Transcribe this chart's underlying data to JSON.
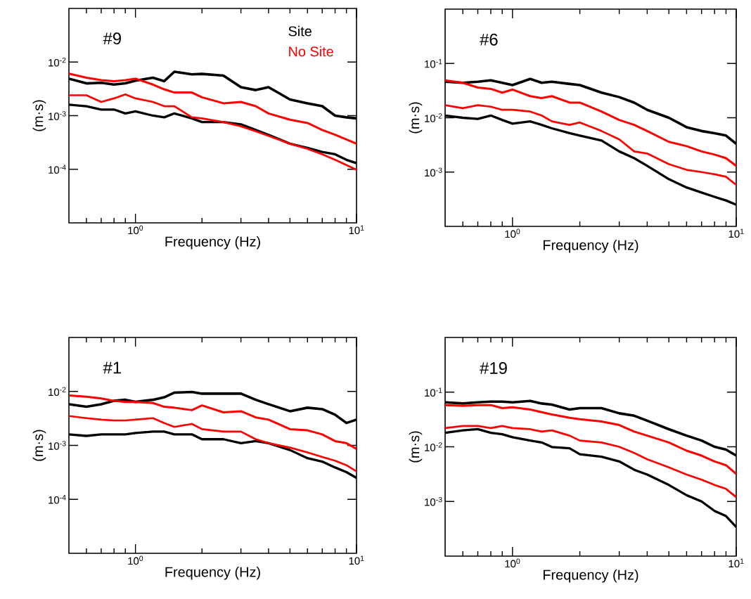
{
  "chart_data": [
    {
      "type": "line",
      "title": "#9",
      "xlabel": "Frequency (Hz)",
      "ylabel": "(m·s)",
      "log": "xy",
      "legend": "top right",
      "x": [
        0.5,
        0.6,
        0.7,
        0.8,
        0.9,
        1,
        1.2,
        1.35,
        1.5,
        1.8,
        2,
        2.5,
        3,
        3.5,
        4,
        5,
        6,
        7,
        8,
        9,
        10
      ],
      "series": [
        {
          "name": "Site",
          "color": "#000000",
          "values": [
            0.0049,
            0.004,
            0.0041,
            0.0038,
            0.004,
            0.0045,
            0.0051,
            0.0044,
            0.0066,
            0.0059,
            0.006,
            0.0056,
            0.0034,
            0.003,
            0.0034,
            0.002,
            0.0017,
            0.0015,
            0.001,
            0.00093,
            0.00089
          ]
        },
        {
          "color": "#000000",
          "values": [
            0.0016,
            0.0015,
            0.0013,
            0.0013,
            0.0011,
            0.0012,
            0.001,
            0.00093,
            0.0011,
            0.00089,
            0.00076,
            0.00076,
            0.00069,
            0.00054,
            0.00044,
            0.0003,
            0.00025,
            0.00021,
            0.00019,
            0.00015,
            0.00013
          ]
        },
        {
          "name": "No Site",
          "color": "#ff0000",
          "values": [
            0.0061,
            0.0051,
            0.0046,
            0.0044,
            0.0046,
            0.0049,
            0.0038,
            0.0031,
            0.0027,
            0.0027,
            0.0022,
            0.0017,
            0.0018,
            0.0015,
            0.0011,
            0.00084,
            0.00073,
            0.00054,
            0.00044,
            0.00036,
            0.0003
          ]
        },
        {
          "color": "#ff0000",
          "values": [
            0.0024,
            0.0024,
            0.0018,
            0.0021,
            0.0025,
            0.0021,
            0.0018,
            0.0015,
            0.0015,
            0.00093,
            0.00089,
            0.00076,
            0.00063,
            0.00051,
            0.00042,
            0.0003,
            0.00024,
            0.00019,
            0.00015,
            0.00012,
            9.8e-05
          ]
        }
      ],
      "xlim": [
        0.5,
        10
      ],
      "ylim": [
        1e-05,
        0.1
      ],
      "xticks": [
        {
          "value": 0.6,
          "label": null
        },
        {
          "value": 0.7,
          "label": null
        },
        {
          "value": 0.8,
          "label": null
        },
        {
          "value": 0.9,
          "label": null
        },
        {
          "value": 1,
          "label": "10$^{0}$"
        },
        {
          "value": 2,
          "label": null
        },
        {
          "value": 3,
          "label": null
        },
        {
          "value": 4,
          "label": null
        },
        {
          "value": 5,
          "label": null
        },
        {
          "value": 6,
          "label": null
        },
        {
          "value": 7,
          "label": null
        },
        {
          "value": 8,
          "label": null
        },
        {
          "value": 9,
          "label": null
        },
        {
          "value": 10,
          "label": "10$^{1}$"
        }
      ],
      "yticks": [
        {
          "value": 0.0001,
          "label": "10$^{-4}$"
        },
        {
          "value": 0.001,
          "label": "10$^{-3}$"
        },
        {
          "value": 0.01,
          "label": "10$^{-2}$"
        }
      ]
    },
    {
      "type": "line",
      "title": "#6",
      "xlabel": "Frequency (Hz)",
      "ylabel": "(m·s)",
      "log": "xy",
      "x": [
        0.5,
        0.6,
        0.7,
        0.8,
        0.9,
        1,
        1.2,
        1.35,
        1.5,
        1.8,
        2,
        2.5,
        3,
        3.5,
        4,
        5,
        6,
        7,
        8,
        9,
        10
      ],
      "series": [
        {
          "color": "#000000",
          "values": [
            0.046,
            0.044,
            0.046,
            0.049,
            0.044,
            0.04,
            0.052,
            0.044,
            0.046,
            0.042,
            0.04,
            0.029,
            0.024,
            0.019,
            0.014,
            0.01,
            0.0067,
            0.0057,
            0.0052,
            0.0047,
            0.0033
          ]
        },
        {
          "color": "#000000",
          "values": [
            0.011,
            0.01,
            0.0095,
            0.011,
            0.0091,
            0.0078,
            0.0086,
            0.0074,
            0.0064,
            0.0052,
            0.0047,
            0.0038,
            0.0024,
            0.0018,
            0.0013,
            0.00074,
            0.00052,
            0.00042,
            0.00035,
            0.0003,
            0.00025
          ]
        },
        {
          "color": "#ff0000",
          "values": [
            0.049,
            0.044,
            0.036,
            0.034,
            0.029,
            0.033,
            0.025,
            0.023,
            0.025,
            0.019,
            0.019,
            0.013,
            0.0091,
            0.0074,
            0.0057,
            0.0036,
            0.003,
            0.0024,
            0.0021,
            0.0018,
            0.0013
          ]
        },
        {
          "color": "#ff0000",
          "values": [
            0.017,
            0.015,
            0.017,
            0.016,
            0.014,
            0.014,
            0.013,
            0.011,
            0.0086,
            0.0074,
            0.0082,
            0.0057,
            0.004,
            0.0024,
            0.0022,
            0.0014,
            0.0011,
            0.001,
            0.00091,
            0.00082,
            0.00058
          ]
        }
      ],
      "xlim": [
        0.5,
        10
      ],
      "ylim": [
        0.0001,
        1
      ],
      "xticks": [
        {
          "value": 0.6,
          "label": null
        },
        {
          "value": 0.7,
          "label": null
        },
        {
          "value": 0.8,
          "label": null
        },
        {
          "value": 0.9,
          "label": null
        },
        {
          "value": 1,
          "label": "10$^{0}$"
        },
        {
          "value": 2,
          "label": null
        },
        {
          "value": 3,
          "label": null
        },
        {
          "value": 4,
          "label": null
        },
        {
          "value": 5,
          "label": null
        },
        {
          "value": 6,
          "label": null
        },
        {
          "value": 7,
          "label": null
        },
        {
          "value": 8,
          "label": null
        },
        {
          "value": 9,
          "label": null
        },
        {
          "value": 10,
          "label": "10$^{1}$"
        }
      ],
      "yticks": [
        {
          "value": 0.001,
          "label": "10$^{-3}$"
        },
        {
          "value": 0.01,
          "label": "10$^{-2}$"
        },
        {
          "value": 0.1,
          "label": "10$^{-1}$"
        }
      ]
    },
    {
      "type": "line",
      "title": "#1",
      "xlabel": "Frequency (Hz)",
      "ylabel": "(m·s)",
      "log": "xy",
      "x": [
        0.5,
        0.6,
        0.7,
        0.8,
        0.9,
        1,
        1.2,
        1.35,
        1.5,
        1.8,
        2,
        2.5,
        3,
        3.5,
        4,
        5,
        6,
        7,
        8,
        9,
        10
      ],
      "series": [
        {
          "color": "#000000",
          "values": [
            0.0058,
            0.0052,
            0.0058,
            0.0067,
            0.007,
            0.0064,
            0.007,
            0.0078,
            0.0095,
            0.0098,
            0.0091,
            0.0091,
            0.0091,
            0.007,
            0.0058,
            0.0043,
            0.005,
            0.0047,
            0.0037,
            0.0026,
            0.003
          ]
        },
        {
          "color": "#000000",
          "values": [
            0.0016,
            0.0015,
            0.0016,
            0.0016,
            0.0016,
            0.0017,
            0.0018,
            0.0018,
            0.0016,
            0.0016,
            0.0013,
            0.0013,
            0.0011,
            0.0012,
            0.0011,
            0.00082,
            0.00058,
            0.0005,
            0.00039,
            0.00032,
            0.00025
          ]
        },
        {
          "color": "#ff0000",
          "values": [
            0.0084,
            0.008,
            0.0074,
            0.0067,
            0.0064,
            0.0064,
            0.0061,
            0.0052,
            0.005,
            0.0045,
            0.0055,
            0.0041,
            0.0043,
            0.0033,
            0.003,
            0.002,
            0.0019,
            0.0016,
            0.0012,
            0.0011,
            0.00086
          ]
        },
        {
          "color": "#ff0000",
          "values": [
            0.0035,
            0.0032,
            0.003,
            0.0029,
            0.0029,
            0.003,
            0.0032,
            0.0026,
            0.0022,
            0.0025,
            0.002,
            0.0018,
            0.0018,
            0.0013,
            0.0011,
            0.00091,
            0.00074,
            0.00061,
            0.00052,
            0.00043,
            0.00033
          ]
        }
      ],
      "xlim": [
        0.5,
        10
      ],
      "ylim": [
        1e-05,
        0.1
      ],
      "xticks": [
        {
          "value": 0.6,
          "label": null
        },
        {
          "value": 0.7,
          "label": null
        },
        {
          "value": 0.8,
          "label": null
        },
        {
          "value": 0.9,
          "label": null
        },
        {
          "value": 1,
          "label": "10$^{0}$"
        },
        {
          "value": 2,
          "label": null
        },
        {
          "value": 3,
          "label": null
        },
        {
          "value": 4,
          "label": null
        },
        {
          "value": 5,
          "label": null
        },
        {
          "value": 6,
          "label": null
        },
        {
          "value": 7,
          "label": null
        },
        {
          "value": 8,
          "label": null
        },
        {
          "value": 9,
          "label": null
        },
        {
          "value": 10,
          "label": "10$^{1}$"
        }
      ],
      "yticks": [
        {
          "value": 0.0001,
          "label": "10$^{-4}$"
        },
        {
          "value": 0.001,
          "label": "10$^{-3}$"
        },
        {
          "value": 0.01,
          "label": "10$^{-2}$"
        }
      ]
    },
    {
      "type": "line",
      "title": "#19",
      "xlabel": "Frequency (Hz)",
      "ylabel": "(m·s)",
      "log": "xy",
      "x": [
        0.5,
        0.6,
        0.7,
        0.8,
        0.9,
        1,
        1.2,
        1.35,
        1.5,
        1.8,
        2,
        2.5,
        3,
        3.5,
        4,
        5,
        6,
        7,
        8,
        9,
        10
      ],
      "series": [
        {
          "color": "#000000",
          "values": [
            0.065,
            0.062,
            0.065,
            0.067,
            0.067,
            0.065,
            0.069,
            0.062,
            0.059,
            0.048,
            0.051,
            0.051,
            0.041,
            0.037,
            0.03,
            0.021,
            0.016,
            0.013,
            0.01,
            0.0089,
            0.0069
          ]
        },
        {
          "color": "#000000",
          "values": [
            0.018,
            0.02,
            0.021,
            0.018,
            0.017,
            0.015,
            0.013,
            0.012,
            0.0099,
            0.0094,
            0.0073,
            0.0066,
            0.0054,
            0.0038,
            0.0031,
            0.002,
            0.0013,
            0.001,
            0.00067,
            0.00054,
            0.00034
          ]
        },
        {
          "color": "#ff0000",
          "values": [
            0.058,
            0.056,
            0.058,
            0.058,
            0.051,
            0.053,
            0.048,
            0.043,
            0.039,
            0.034,
            0.032,
            0.029,
            0.025,
            0.019,
            0.016,
            0.012,
            0.0085,
            0.0069,
            0.0054,
            0.0046,
            0.0032
          ]
        },
        {
          "color": "#ff0000",
          "values": [
            0.022,
            0.024,
            0.024,
            0.022,
            0.024,
            0.022,
            0.021,
            0.019,
            0.02,
            0.016,
            0.013,
            0.012,
            0.01,
            0.0077,
            0.0059,
            0.0042,
            0.0031,
            0.0025,
            0.002,
            0.0017,
            0.0012
          ]
        }
      ],
      "xlim": [
        0.5,
        10
      ],
      "ylim": [
        0.0001,
        1
      ],
      "xticks": [
        {
          "value": 0.6,
          "label": null
        },
        {
          "value": 0.7,
          "label": null
        },
        {
          "value": 0.8,
          "label": null
        },
        {
          "value": 0.9,
          "label": null
        },
        {
          "value": 1,
          "label": "10$^{0}$"
        },
        {
          "value": 2,
          "label": null
        },
        {
          "value": 3,
          "label": null
        },
        {
          "value": 4,
          "label": null
        },
        {
          "value": 5,
          "label": null
        },
        {
          "value": 6,
          "label": null
        },
        {
          "value": 7,
          "label": null
        },
        {
          "value": 8,
          "label": null
        },
        {
          "value": 9,
          "label": null
        },
        {
          "value": 10,
          "label": "10$^{1}$"
        }
      ],
      "yticks": [
        {
          "value": 0.001,
          "label": "10$^{-3}$"
        },
        {
          "value": 0.01,
          "label": "10$^{-2}$"
        },
        {
          "value": 0.1,
          "label": "10$^{-1}$"
        }
      ]
    }
  ]
}
